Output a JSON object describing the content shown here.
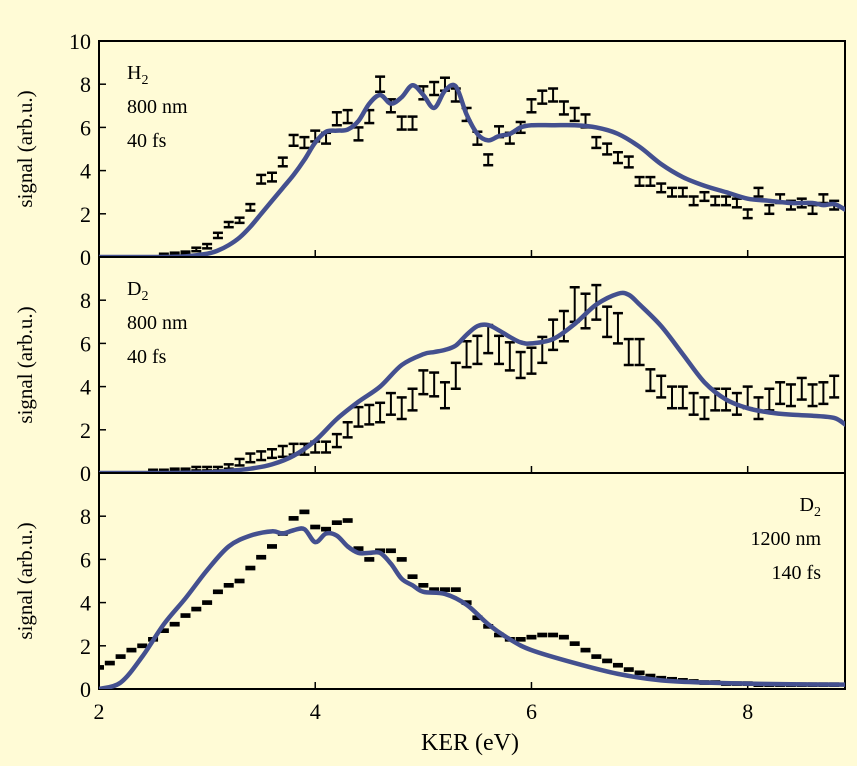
{
  "chart_data": [
    {
      "type": "line",
      "panel": "top",
      "annotation": {
        "species": "H",
        "subscript": "2",
        "lines": [
          "800 nm",
          "40 fs"
        ],
        "align": "left"
      },
      "ylabel": "signal (arb.u.)",
      "xlabel": "",
      "xlim": [
        2,
        8.9
      ],
      "ylim": [
        0,
        10
      ],
      "yticks": [
        0,
        2,
        4,
        6,
        8,
        10
      ],
      "xticks": [
        2,
        4,
        6,
        8
      ],
      "show_xtick_labels": false,
      "series": [
        {
          "name": "",
          "style": "errorbar",
          "color": "#000000",
          "x": [
            2.6,
            2.7,
            2.8,
            2.9,
            3.0,
            3.1,
            3.2,
            3.3,
            3.4,
            3.5,
            3.6,
            3.7,
            3.8,
            3.9,
            4.0,
            4.1,
            4.2,
            4.3,
            4.4,
            4.5,
            4.6,
            4.7,
            4.8,
            4.9,
            5.0,
            5.1,
            5.2,
            5.3,
            5.4,
            5.5,
            5.6,
            5.7,
            5.8,
            5.9,
            6.0,
            6.1,
            6.2,
            6.3,
            6.4,
            6.5,
            6.6,
            6.7,
            6.8,
            6.9,
            7.0,
            7.1,
            7.2,
            7.3,
            7.4,
            7.5,
            7.6,
            7.7,
            7.8,
            7.9,
            8.0,
            8.1,
            8.2,
            8.3,
            8.4,
            8.5,
            8.6,
            8.7,
            8.8
          ],
          "y": [
            0.1,
            0.15,
            0.2,
            0.35,
            0.5,
            1.0,
            1.5,
            1.7,
            2.3,
            3.6,
            3.7,
            4.4,
            5.4,
            5.3,
            5.6,
            5.5,
            6.4,
            6.5,
            5.7,
            6.5,
            8.0,
            7.0,
            6.2,
            6.2,
            7.6,
            7.8,
            8.0,
            7.5,
            6.6,
            5.5,
            4.5,
            5.8,
            5.5,
            6.0,
            7.0,
            7.4,
            7.5,
            6.9,
            6.6,
            6.3,
            5.3,
            5.0,
            4.6,
            4.4,
            3.5,
            3.5,
            3.2,
            3.0,
            3.0,
            2.6,
            2.8,
            2.6,
            2.6,
            2.5,
            2.0,
            3.0,
            2.2,
            2.7,
            2.4,
            2.5,
            2.2,
            2.7,
            2.4
          ],
          "err": [
            0.05,
            0.05,
            0.05,
            0.08,
            0.1,
            0.12,
            0.12,
            0.12,
            0.15,
            0.2,
            0.2,
            0.2,
            0.25,
            0.25,
            0.25,
            0.25,
            0.3,
            0.3,
            0.3,
            0.3,
            0.35,
            0.3,
            0.3,
            0.3,
            0.3,
            0.3,
            0.3,
            0.3,
            0.3,
            0.3,
            0.25,
            0.25,
            0.25,
            0.25,
            0.3,
            0.3,
            0.3,
            0.3,
            0.3,
            0.3,
            0.25,
            0.25,
            0.25,
            0.25,
            0.2,
            0.2,
            0.2,
            0.2,
            0.2,
            0.2,
            0.2,
            0.2,
            0.2,
            0.2,
            0.2,
            0.2,
            0.2,
            0.2,
            0.2,
            0.2,
            0.2,
            0.2,
            0.2
          ]
        },
        {
          "name": "",
          "style": "line",
          "color": "#44508f",
          "x": [
            2.0,
            2.5,
            2.8,
            3.0,
            3.1,
            3.2,
            3.3,
            3.4,
            3.5,
            3.6,
            3.7,
            3.8,
            3.9,
            4.0,
            4.1,
            4.2,
            4.3,
            4.4,
            4.5,
            4.6,
            4.7,
            4.8,
            4.9,
            5.0,
            5.1,
            5.2,
            5.3,
            5.4,
            5.5,
            5.6,
            5.7,
            5.8,
            5.9,
            6.0,
            6.2,
            6.4,
            6.6,
            6.8,
            7.0,
            7.2,
            7.4,
            7.6,
            7.8,
            8.0,
            8.2,
            8.4,
            8.6,
            8.7,
            8.8,
            8.9
          ],
          "y": [
            0.0,
            0.0,
            0.03,
            0.15,
            0.3,
            0.55,
            0.9,
            1.4,
            2.0,
            2.6,
            3.2,
            3.8,
            4.5,
            5.3,
            5.8,
            5.85,
            5.9,
            6.3,
            7.1,
            7.5,
            7.1,
            7.4,
            7.95,
            7.5,
            6.9,
            7.7,
            7.9,
            6.6,
            5.7,
            5.4,
            5.6,
            5.7,
            6.0,
            6.1,
            6.1,
            6.1,
            6.0,
            5.7,
            5.1,
            4.3,
            3.7,
            3.3,
            3.0,
            2.7,
            2.6,
            2.5,
            2.5,
            2.4,
            2.45,
            2.2
          ]
        }
      ]
    },
    {
      "type": "line",
      "panel": "middle",
      "annotation": {
        "species": "D",
        "subscript": "2",
        "lines": [
          "800 nm",
          "40 fs"
        ],
        "align": "left"
      },
      "ylabel": "signal (arb.u.)",
      "xlabel": "",
      "xlim": [
        2,
        8.9
      ],
      "ylim": [
        0,
        10
      ],
      "yticks": [
        0,
        2,
        4,
        6,
        8
      ],
      "xticks": [
        2,
        4,
        6,
        8
      ],
      "show_xtick_labels": false,
      "series": [
        {
          "name": "",
          "style": "errorbar",
          "color": "#000000",
          "x": [
            2.5,
            2.6,
            2.7,
            2.8,
            2.9,
            3.0,
            3.1,
            3.2,
            3.3,
            3.4,
            3.5,
            3.6,
            3.7,
            3.8,
            3.9,
            4.0,
            4.1,
            4.2,
            4.3,
            4.4,
            4.5,
            4.6,
            4.7,
            4.8,
            4.9,
            5.0,
            5.1,
            5.2,
            5.3,
            5.4,
            5.5,
            5.6,
            5.7,
            5.8,
            5.9,
            6.0,
            6.1,
            6.2,
            6.3,
            6.4,
            6.5,
            6.6,
            6.7,
            6.8,
            6.9,
            7.0,
            7.1,
            7.2,
            7.3,
            7.4,
            7.5,
            7.6,
            7.7,
            7.8,
            7.9,
            8.0,
            8.1,
            8.2,
            8.3,
            8.4,
            8.5,
            8.6,
            8.7,
            8.8
          ],
          "y": [
            0.1,
            0.1,
            0.15,
            0.15,
            0.2,
            0.2,
            0.2,
            0.3,
            0.5,
            0.7,
            0.8,
            0.9,
            1.0,
            1.1,
            1.1,
            1.2,
            1.2,
            1.5,
            2.0,
            2.6,
            2.7,
            2.8,
            3.2,
            3.0,
            3.4,
            4.2,
            4.1,
            3.6,
            4.5,
            5.5,
            5.7,
            6.2,
            5.7,
            5.4,
            5.0,
            5.2,
            5.7,
            6.4,
            6.8,
            7.8,
            7.5,
            7.9,
            7.0,
            6.7,
            5.6,
            5.6,
            4.3,
            4.0,
            3.5,
            3.5,
            3.2,
            3.0,
            3.4,
            3.4,
            3.2,
            3.5,
            3.0,
            3.4,
            3.7,
            3.6,
            3.9,
            3.6,
            3.7,
            4.0
          ],
          "err": [
            0.05,
            0.05,
            0.05,
            0.05,
            0.08,
            0.08,
            0.08,
            0.1,
            0.15,
            0.2,
            0.2,
            0.2,
            0.25,
            0.25,
            0.25,
            0.25,
            0.25,
            0.3,
            0.35,
            0.45,
            0.45,
            0.45,
            0.5,
            0.5,
            0.5,
            0.55,
            0.55,
            0.6,
            0.6,
            0.6,
            0.65,
            0.65,
            0.65,
            0.65,
            0.6,
            0.6,
            0.6,
            0.7,
            0.7,
            0.8,
            0.8,
            0.8,
            0.7,
            0.7,
            0.6,
            0.6,
            0.5,
            0.5,
            0.5,
            0.5,
            0.5,
            0.5,
            0.5,
            0.5,
            0.5,
            0.5,
            0.5,
            0.5,
            0.5,
            0.5,
            0.5,
            0.5,
            0.5,
            0.5
          ]
        },
        {
          "name": "",
          "style": "line",
          "color": "#44508f",
          "x": [
            2.0,
            2.5,
            3.0,
            3.2,
            3.4,
            3.6,
            3.8,
            4.0,
            4.2,
            4.4,
            4.6,
            4.8,
            5.0,
            5.1,
            5.2,
            5.3,
            5.4,
            5.5,
            5.6,
            5.7,
            5.8,
            5.9,
            6.0,
            6.2,
            6.4,
            6.6,
            6.8,
            6.9,
            7.0,
            7.2,
            7.4,
            7.6,
            7.8,
            8.0,
            8.2,
            8.4,
            8.6,
            8.8,
            8.9
          ],
          "y": [
            0.0,
            0.0,
            0.03,
            0.1,
            0.2,
            0.4,
            0.8,
            1.5,
            2.5,
            3.3,
            4.0,
            5.0,
            5.5,
            5.6,
            5.7,
            5.9,
            6.4,
            6.8,
            6.85,
            6.6,
            6.3,
            6.05,
            6.0,
            6.2,
            6.9,
            7.8,
            8.3,
            8.25,
            7.8,
            6.8,
            5.5,
            4.2,
            3.4,
            3.0,
            2.8,
            2.7,
            2.65,
            2.55,
            2.25
          ]
        }
      ]
    },
    {
      "type": "line",
      "panel": "bottom",
      "annotation": {
        "species": "D",
        "subscript": "2",
        "lines": [
          "1200 nm",
          "140 fs"
        ],
        "align": "right"
      },
      "ylabel": "signal (arb.u.)",
      "xlabel": "KER (eV)",
      "xlim": [
        2,
        8.9
      ],
      "ylim": [
        0,
        10
      ],
      "yticks": [
        0,
        2,
        4,
        6,
        8
      ],
      "xticks": [
        2,
        4,
        6,
        8
      ],
      "show_xtick_labels": true,
      "series": [
        {
          "name": "",
          "style": "errorbar",
          "color": "#000000",
          "x": [
            2.0,
            2.1,
            2.2,
            2.3,
            2.4,
            2.5,
            2.6,
            2.7,
            2.8,
            2.9,
            3.0,
            3.1,
            3.2,
            3.3,
            3.4,
            3.5,
            3.6,
            3.7,
            3.8,
            3.9,
            4.0,
            4.1,
            4.2,
            4.3,
            4.4,
            4.5,
            4.6,
            4.7,
            4.8,
            4.9,
            5.0,
            5.1,
            5.2,
            5.3,
            5.4,
            5.5,
            5.6,
            5.7,
            5.8,
            5.9,
            6.0,
            6.1,
            6.2,
            6.3,
            6.4,
            6.5,
            6.6,
            6.7,
            6.8,
            6.9,
            7.0,
            7.1,
            7.2,
            7.3,
            7.4,
            7.5,
            7.6,
            7.7,
            7.8,
            7.9,
            8.0,
            8.1,
            8.2,
            8.3,
            8.4,
            8.5,
            8.6,
            8.7,
            8.8
          ],
          "y": [
            1.0,
            1.2,
            1.5,
            1.8,
            2.0,
            2.3,
            2.7,
            3.0,
            3.4,
            3.7,
            4.0,
            4.5,
            4.8,
            5.0,
            5.6,
            6.1,
            6.6,
            7.2,
            7.9,
            8.2,
            7.5,
            7.4,
            7.7,
            7.8,
            6.5,
            6.0,
            6.4,
            6.4,
            6.0,
            5.2,
            4.8,
            4.6,
            4.6,
            4.6,
            4.0,
            3.3,
            2.9,
            2.5,
            2.3,
            2.3,
            2.4,
            2.5,
            2.5,
            2.4,
            2.1,
            1.8,
            1.5,
            1.3,
            1.1,
            0.9,
            0.75,
            0.6,
            0.5,
            0.45,
            0.4,
            0.35,
            0.3,
            0.3,
            0.25,
            0.25,
            0.25,
            0.2,
            0.2,
            0.2,
            0.2,
            0.2,
            0.2,
            0.2,
            0.2
          ],
          "err": [
            0.05,
            0.05,
            0.05,
            0.05,
            0.05,
            0.05,
            0.05,
            0.05,
            0.05,
            0.05,
            0.05,
            0.05,
            0.05,
            0.05,
            0.05,
            0.05,
            0.05,
            0.05,
            0.05,
            0.05,
            0.05,
            0.05,
            0.05,
            0.05,
            0.05,
            0.05,
            0.05,
            0.05,
            0.05,
            0.05,
            0.05,
            0.05,
            0.05,
            0.05,
            0.05,
            0.05,
            0.05,
            0.05,
            0.05,
            0.05,
            0.05,
            0.05,
            0.05,
            0.05,
            0.05,
            0.05,
            0.05,
            0.05,
            0.05,
            0.05,
            0.05,
            0.05,
            0.05,
            0.05,
            0.05,
            0.05,
            0.05,
            0.05,
            0.05,
            0.05,
            0.05,
            0.05,
            0.05,
            0.05,
            0.05,
            0.05,
            0.05,
            0.05,
            0.05
          ]
        },
        {
          "name": "",
          "style": "line",
          "color": "#44508f",
          "x": [
            2.0,
            2.2,
            2.4,
            2.6,
            2.8,
            3.0,
            3.2,
            3.4,
            3.6,
            3.7,
            3.8,
            3.9,
            4.0,
            4.1,
            4.2,
            4.3,
            4.4,
            4.5,
            4.6,
            4.7,
            4.8,
            4.9,
            5.0,
            5.2,
            5.4,
            5.6,
            5.8,
            6.0,
            6.4,
            6.8,
            7.2,
            7.6,
            8.0,
            8.4,
            8.9
          ],
          "y": [
            0.0,
            0.3,
            1.5,
            3.0,
            4.2,
            5.5,
            6.6,
            7.1,
            7.3,
            7.2,
            7.35,
            7.4,
            6.8,
            7.2,
            7.1,
            6.6,
            6.3,
            6.3,
            6.3,
            5.8,
            5.1,
            4.8,
            4.5,
            4.4,
            3.9,
            3.0,
            2.3,
            1.8,
            1.2,
            0.7,
            0.4,
            0.3,
            0.25,
            0.22,
            0.2
          ]
        }
      ]
    }
  ]
}
